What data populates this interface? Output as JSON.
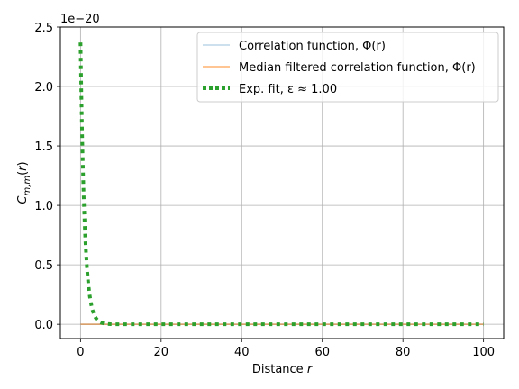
{
  "chart_data": {
    "type": "line",
    "title": "",
    "xlabel_text": "Distance ",
    "xlabel_var": "r",
    "ylabel": "C_{m,m}(r)",
    "offset_text": "1e−20",
    "xlim": [
      -5,
      105
    ],
    "ylim": [
      -0.12,
      2.5
    ],
    "y_scale_exponent": -20,
    "grid": true,
    "legend_position": "top-right",
    "x_ticks": [
      0,
      20,
      40,
      60,
      80,
      100
    ],
    "x_tick_labels": [
      "0",
      "20",
      "40",
      "60",
      "80",
      "100"
    ],
    "y_ticks": [
      0.0,
      0.5,
      1.0,
      1.5,
      2.0,
      2.5
    ],
    "y_tick_labels": [
      "0.0",
      "0.5",
      "1.0",
      "1.5",
      "2.0",
      "2.5"
    ],
    "series": [
      {
        "name": "Correlation function, Φ(r)",
        "color": "#1f77b4",
        "style": "solid-light",
        "x": [
          0,
          100
        ],
        "values": [
          0,
          0
        ]
      },
      {
        "name": "Median filtered correlation function, Φ(r)",
        "color": "#ff7f0e",
        "style": "solid-light",
        "x": [
          0,
          100
        ],
        "values": [
          0,
          0
        ]
      },
      {
        "name": "Exp. fit, ε ≈ 1.00",
        "color": "#2ca02c",
        "style": "dotted",
        "amplitude": 2.37,
        "epsilon": 1.0,
        "x_range": [
          0,
          100
        ]
      }
    ]
  }
}
